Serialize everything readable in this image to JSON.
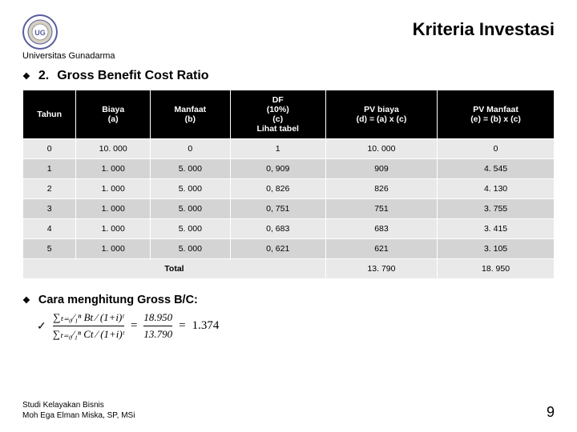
{
  "header": {
    "title": "Kriteria Investasi",
    "university": "Universitas Gunadarma",
    "logo_outer": "#575d9e",
    "logo_inner": "#d5d0c2",
    "logo_text": "UG"
  },
  "section": {
    "number": "2.",
    "title": "Gross Benefit Cost Ratio",
    "bullet": "❖"
  },
  "table": {
    "columns": [
      "Tahun",
      "Biaya\n(a)",
      "Manfaat\n(b)",
      "DF\n(10%)\n(c)\nLihat tabel",
      "PV biaya\n(d) = (a) x (c)",
      "PV Manfaat\n(e) = (b) x (c)"
    ],
    "rows": [
      [
        "0",
        "10. 000",
        "0",
        "1",
        "10. 000",
        "0"
      ],
      [
        "1",
        "1. 000",
        "5. 000",
        "0, 909",
        "909",
        "4. 545"
      ],
      [
        "2",
        "1. 000",
        "5. 000",
        "0, 826",
        "826",
        "4. 130"
      ],
      [
        "3",
        "1. 000",
        "5. 000",
        "0, 751",
        "751",
        "3. 755"
      ],
      [
        "4",
        "1. 000",
        "5. 000",
        "0, 683",
        "683",
        "3. 415"
      ],
      [
        "5",
        "1. 000",
        "5. 000",
        "0, 621",
        "621",
        "3. 105"
      ]
    ],
    "total_label": "Total",
    "total_d": "13. 790",
    "total_e": "18. 950"
  },
  "calc": {
    "heading": "Cara menghitung Gross B/C:",
    "bullet": "❖",
    "check": "✓",
    "sigma_top": "∑ₜ₌₀⁄₁ⁿ  Bt ⁄ (1+i)ᵗ",
    "sigma_bot": "∑ₜ₌₀⁄₁ⁿ  Ct ⁄ (1+i)ᵗ",
    "num_value": "18.950",
    "den_value": "13.790",
    "result": "1.374"
  },
  "footer": {
    "line1": "Studi Kelayakan Bisnis",
    "line2": "Moh Ega Elman Miska, SP, MSi",
    "page": "9"
  }
}
